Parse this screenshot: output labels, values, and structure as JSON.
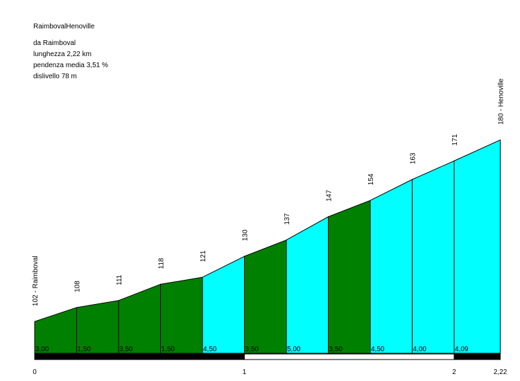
{
  "header": {
    "title": "RaimbovalHenoville",
    "from": "da Raimboval",
    "length": "lunghezza 2,22 km",
    "avg_grade": "pendenza media 3,51 %",
    "elevation_gain": "dislivello 78 m"
  },
  "colors": {
    "dark_segment": "#008000",
    "light_segment": "#00ffff",
    "outline": "#000000",
    "scale_dark": "#000000",
    "scale_light": "#ffffff"
  },
  "chart_data": {
    "type": "area",
    "xlabel": "",
    "ylabel": "",
    "xlim": [
      0,
      2.22
    ],
    "x_ticks": [
      "0",
      "1",
      "2",
      "2,22"
    ],
    "x_tick_values": [
      0,
      1,
      2,
      2.22
    ],
    "points": [
      {
        "x": 0.0,
        "y": 102,
        "label": "102 - Raimboval"
      },
      {
        "x": 0.2,
        "y": 108,
        "label": "108"
      },
      {
        "x": 0.4,
        "y": 111,
        "label": "111"
      },
      {
        "x": 0.6,
        "y": 118,
        "label": "118"
      },
      {
        "x": 0.8,
        "y": 121,
        "label": "121"
      },
      {
        "x": 1.0,
        "y": 130,
        "label": "130"
      },
      {
        "x": 1.2,
        "y": 137,
        "label": "137"
      },
      {
        "x": 1.4,
        "y": 147,
        "label": "147"
      },
      {
        "x": 1.6,
        "y": 154,
        "label": "154"
      },
      {
        "x": 1.8,
        "y": 163,
        "label": "163"
      },
      {
        "x": 2.0,
        "y": 171,
        "label": "171"
      },
      {
        "x": 2.22,
        "y": 180,
        "label": "180 - Henoville"
      }
    ],
    "segments": [
      {
        "grade": "3,00",
        "color": "dark"
      },
      {
        "grade": "1,50",
        "color": "dark"
      },
      {
        "grade": "3,50",
        "color": "dark"
      },
      {
        "grade": "1,50",
        "color": "dark"
      },
      {
        "grade": "4,50",
        "color": "light"
      },
      {
        "grade": "3,50",
        "color": "dark"
      },
      {
        "grade": "5,00",
        "color": "light"
      },
      {
        "grade": "3,50",
        "color": "dark"
      },
      {
        "grade": "4,50",
        "color": "light"
      },
      {
        "grade": "4,00",
        "color": "light"
      },
      {
        "grade": "4,09",
        "color": "light"
      }
    ]
  }
}
